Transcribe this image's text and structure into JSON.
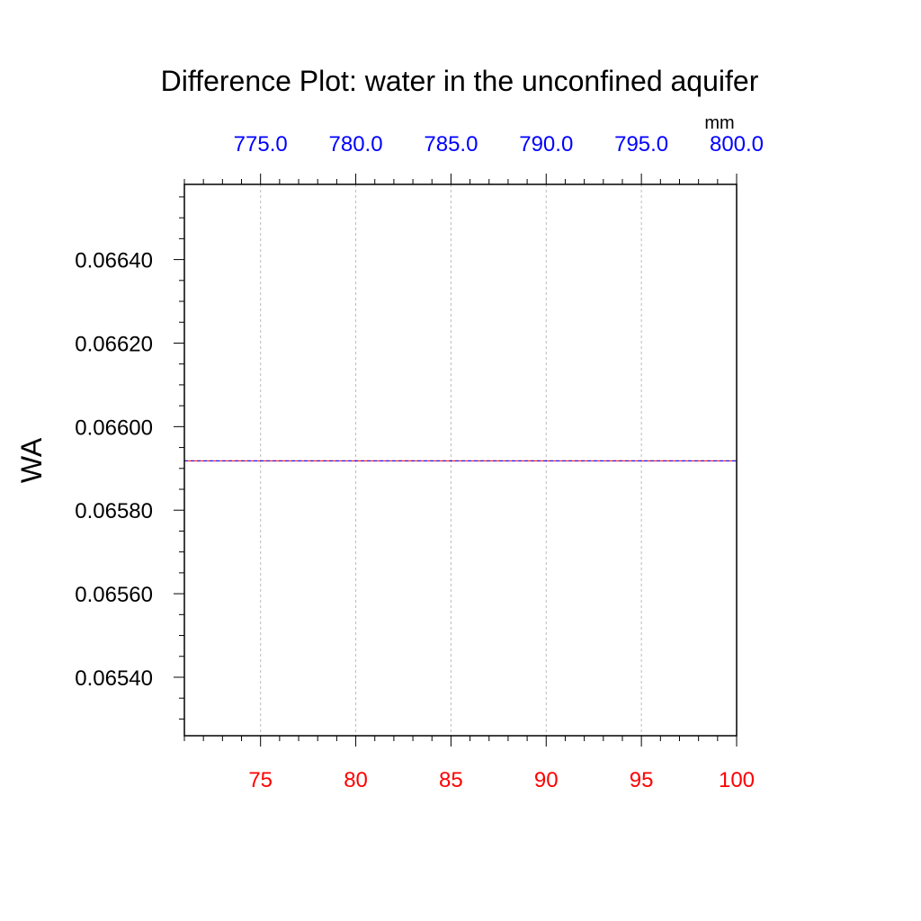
{
  "chart_data": {
    "type": "line",
    "title": "Difference Plot: water in the unconfined aquifer",
    "ylabel": "WA",
    "top_axis_units": "mm",
    "xlim": [
      71,
      100
    ],
    "ylim": [
      0.06526,
      0.06658
    ],
    "top_xlim": [
      771.0,
      800.0
    ],
    "x_ticks": [
      "75",
      "80",
      "85",
      "90",
      "95",
      "100"
    ],
    "x_tick_values": [
      75,
      80,
      85,
      90,
      95,
      100
    ],
    "top_ticks": [
      "775.0",
      "780.0",
      "785.0",
      "790.0",
      "795.0",
      "800.0"
    ],
    "top_tick_values": [
      775,
      780,
      785,
      790,
      795,
      800
    ],
    "y_ticks": [
      "0.06540",
      "0.06560",
      "0.06580",
      "0.06600",
      "0.06620",
      "0.06640"
    ],
    "y_tick_values": [
      0.0654,
      0.0656,
      0.0658,
      0.066,
      0.0662,
      0.0664
    ],
    "grid_x": true,
    "series": [
      {
        "color": "#ff0000",
        "x": [
          71,
          100
        ],
        "y": [
          0.065918,
          0.065918
        ]
      },
      {
        "color": "#0000ff",
        "x": [
          71,
          100
        ],
        "y": [
          0.065918,
          0.065918
        ]
      }
    ],
    "colors": {
      "bottom_axis": "#ff0000",
      "top_axis": "#0000ff",
      "grid": "#bbbbbb",
      "axis": "#000000"
    }
  }
}
